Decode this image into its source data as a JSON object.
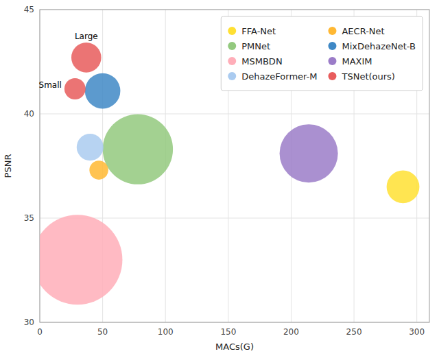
{
  "chart_data": {
    "type": "scatter",
    "xlabel": "MACs(G)",
    "ylabel": "PSNR",
    "xlim": [
      0,
      310
    ],
    "ylim": [
      30,
      45
    ],
    "xticks": [
      0,
      50,
      100,
      150,
      200,
      250,
      300
    ],
    "yticks": [
      30,
      35,
      40,
      45
    ],
    "grid": true,
    "legend": "upper right",
    "series": [
      {
        "name": "FFA-Net",
        "color": "#FFE033",
        "x": [
          289
        ],
        "values": [
          36.5
        ],
        "sizes": [
          1200
        ]
      },
      {
        "name": "PMNet",
        "color": "#93C97E",
        "x": [
          78
        ],
        "values": [
          38.3
        ],
        "sizes": [
          5500
        ]
      },
      {
        "name": "MSMBDN",
        "color": "#FFAEB9",
        "x": [
          30
        ],
        "values": [
          33.0
        ],
        "sizes": [
          9000
        ]
      },
      {
        "name": "DehazeFormer-M",
        "color": "#AACBF0",
        "x": [
          40
        ],
        "values": [
          38.4
        ],
        "sizes": [
          800
        ]
      },
      {
        "name": "AECR-Net",
        "color": "#FFB833",
        "x": [
          47
        ],
        "values": [
          37.3
        ],
        "sizes": [
          400
        ]
      },
      {
        "name": "MixDehazeNet-B",
        "color": "#3F88C5",
        "x": [
          50
        ],
        "values": [
          41.1
        ],
        "sizes": [
          1400
        ]
      },
      {
        "name": "MAXIM",
        "color": "#9B7CC8",
        "x": [
          214
        ],
        "values": [
          38.1
        ],
        "sizes": [
          3800
        ]
      },
      {
        "name": "TSNet(ours)",
        "color": "#E85C5C",
        "x": [
          28,
          37
        ],
        "values": [
          41.2,
          42.7
        ],
        "sizes": [
          500,
          1000
        ],
        "labels": [
          "Small",
          "Large"
        ]
      }
    ]
  }
}
